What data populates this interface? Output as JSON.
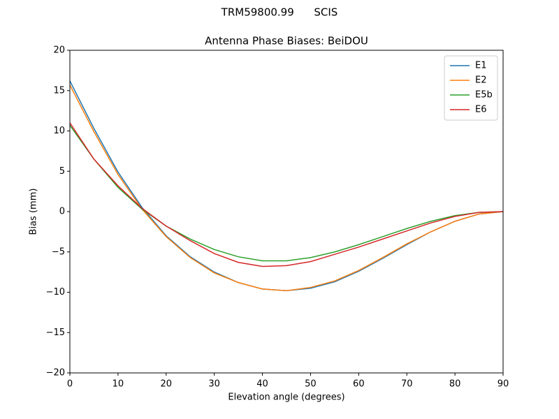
{
  "chart_data": {
    "type": "line",
    "suptitle": "TRM59800.99      SCIS",
    "title": "Antenna Phase Biases: BeiDOU",
    "xlabel": "Elevation angle (degrees)",
    "ylabel": "Bias (mm)",
    "x": [
      0,
      5,
      10,
      15,
      20,
      25,
      30,
      35,
      40,
      45,
      50,
      55,
      60,
      65,
      70,
      75,
      80,
      85,
      90
    ],
    "series": [
      {
        "name": "E1",
        "color": "#1f77b4",
        "values": [
          16.2,
          10.3,
          4.9,
          0.5,
          -3.0,
          -5.6,
          -7.5,
          -8.8,
          -9.6,
          -9.8,
          -9.5,
          -8.7,
          -7.4,
          -5.8,
          -4.1,
          -2.5,
          -1.2,
          -0.3,
          0.0
        ]
      },
      {
        "name": "E2",
        "color": "#ff7f0e",
        "values": [
          15.7,
          9.9,
          4.6,
          0.3,
          -3.1,
          -5.7,
          -7.6,
          -8.8,
          -9.6,
          -9.8,
          -9.4,
          -8.6,
          -7.3,
          -5.7,
          -4.0,
          -2.5,
          -1.2,
          -0.3,
          0.0
        ]
      },
      {
        "name": "E5b",
        "color": "#2ca02c",
        "values": [
          10.7,
          6.5,
          3.0,
          0.3,
          -1.8,
          -3.4,
          -4.7,
          -5.6,
          -6.1,
          -6.1,
          -5.7,
          -5.0,
          -4.1,
          -3.1,
          -2.1,
          -1.2,
          -0.5,
          -0.1,
          0.0
        ]
      },
      {
        "name": "E6",
        "color": "#d62728",
        "values": [
          11.0,
          6.5,
          3.2,
          0.4,
          -1.8,
          -3.6,
          -5.2,
          -6.3,
          -6.8,
          -6.7,
          -6.2,
          -5.3,
          -4.4,
          -3.4,
          -2.4,
          -1.4,
          -0.6,
          -0.1,
          0.0
        ]
      }
    ],
    "xlim": [
      0,
      90
    ],
    "xticks": [
      0,
      10,
      20,
      30,
      40,
      50,
      60,
      70,
      80,
      90
    ],
    "ylim": [
      -20,
      20
    ],
    "yticks": [
      {
        "value": -20,
        "label": "−20"
      },
      {
        "value": -15,
        "label": "−15"
      },
      {
        "value": -10,
        "label": "−10"
      },
      {
        "value": -5,
        "label": "−5"
      },
      0,
      5,
      10,
      15,
      20
    ],
    "legend": "upper right",
    "grid": false
  }
}
